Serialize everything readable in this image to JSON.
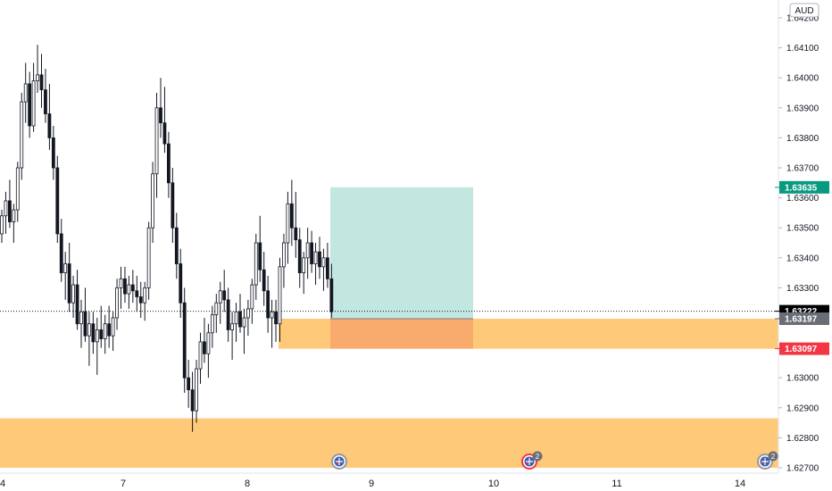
{
  "currency": "AUD",
  "colors": {
    "up": "#ffffff",
    "down": "#131722",
    "wick": "#131722",
    "zone": "#ffc97a",
    "target": "#a8dcd3",
    "stop": "#f7a26a",
    "green_tag": "#089981",
    "red_tag": "#f23645",
    "gray_tag": "#6a6d78",
    "black_tag": "#000000",
    "event_icon": "event-flag-icon"
  },
  "chart_data": {
    "type": "candlestick",
    "symbol_currency": "AUD",
    "y_ticks": [
      "1.62700",
      "1.62800",
      "1.62900",
      "1.63000",
      "1.63100",
      "1.63200",
      "1.63300",
      "1.63400",
      "1.63500",
      "1.63600",
      "1.63700",
      "1.63800",
      "1.63900",
      "1.64000",
      "1.64100",
      "1.64200"
    ],
    "ylim": [
      1.6268,
      1.6422
    ],
    "x_ticks": [
      "4",
      "7",
      "8",
      "9",
      "10",
      "11",
      "14"
    ],
    "price_tags": [
      {
        "label": "1.63635",
        "value": 1.63635,
        "color": "#089981"
      },
      {
        "label": "1.63222",
        "value": 1.63222,
        "color": "#000000"
      },
      {
        "label": "1.63197",
        "value": 1.63197,
        "color": "#6a6d78"
      },
      {
        "label": "1.63097",
        "value": 1.63097,
        "color": "#f23645"
      }
    ],
    "last_price": 1.63222,
    "position": {
      "entry": 1.63197,
      "target": 1.63635,
      "stop": 1.63097
    },
    "zones": [
      {
        "top": 1.63197,
        "bottom": 1.63097
      },
      {
        "top": 1.62865,
        "bottom": 1.627
      }
    ],
    "events": [
      {
        "badge": ""
      },
      {
        "badge": "2"
      },
      {
        "badge": "2"
      }
    ],
    "candles": [
      [
        1.6348,
        1.6356,
        1.6345,
        1.6354
      ],
      [
        1.6354,
        1.6362,
        1.6348,
        1.6359
      ],
      [
        1.6359,
        1.6366,
        1.635,
        1.6352
      ],
      [
        1.6352,
        1.6358,
        1.6345,
        1.6356
      ],
      [
        1.6356,
        1.6372,
        1.6352,
        1.637
      ],
      [
        1.637,
        1.6395,
        1.6366,
        1.6392
      ],
      [
        1.6392,
        1.6405,
        1.6385,
        1.6398
      ],
      [
        1.6398,
        1.6402,
        1.638,
        1.6384
      ],
      [
        1.6384,
        1.6405,
        1.6382,
        1.6399
      ],
      [
        1.6399,
        1.6411,
        1.6395,
        1.6401
      ],
      [
        1.6401,
        1.6408,
        1.639,
        1.6396
      ],
      [
        1.6396,
        1.6403,
        1.6385,
        1.6388
      ],
      [
        1.6388,
        1.6398,
        1.6376,
        1.638
      ],
      [
        1.638,
        1.6384,
        1.6366,
        1.637
      ],
      [
        1.637,
        1.6374,
        1.6345,
        1.6348
      ],
      [
        1.6348,
        1.6353,
        1.6332,
        1.6335
      ],
      [
        1.6335,
        1.6342,
        1.6326,
        1.6338
      ],
      [
        1.6338,
        1.6345,
        1.6322,
        1.6325
      ],
      [
        1.6325,
        1.6334,
        1.632,
        1.6331
      ],
      [
        1.6331,
        1.6336,
        1.6316,
        1.6318
      ],
      [
        1.6318,
        1.6326,
        1.631,
        1.6322
      ],
      [
        1.6322,
        1.633,
        1.6312,
        1.6314
      ],
      [
        1.6314,
        1.6322,
        1.6304,
        1.6318
      ],
      [
        1.6318,
        1.6322,
        1.6308,
        1.6312
      ],
      [
        1.6312,
        1.632,
        1.6301,
        1.6316
      ],
      [
        1.6316,
        1.6324,
        1.631,
        1.6313
      ],
      [
        1.6313,
        1.6321,
        1.6308,
        1.6318
      ],
      [
        1.6318,
        1.6324,
        1.631,
        1.6314
      ],
      [
        1.6314,
        1.6322,
        1.6309,
        1.632
      ],
      [
        1.632,
        1.6333,
        1.6316,
        1.633
      ],
      [
        1.633,
        1.6337,
        1.6323,
        1.6333
      ],
      [
        1.6333,
        1.6337,
        1.6325,
        1.6328
      ],
      [
        1.6328,
        1.6334,
        1.6323,
        1.6331
      ],
      [
        1.6331,
        1.6336,
        1.6325,
        1.6329
      ],
      [
        1.6329,
        1.6334,
        1.6322,
        1.6327
      ],
      [
        1.6327,
        1.6332,
        1.632,
        1.6325
      ],
      [
        1.6325,
        1.6332,
        1.6319,
        1.633
      ],
      [
        1.633,
        1.6352,
        1.6326,
        1.635
      ],
      [
        1.635,
        1.6372,
        1.6345,
        1.6368
      ],
      [
        1.6368,
        1.6395,
        1.636,
        1.639
      ],
      [
        1.639,
        1.64,
        1.638,
        1.6385
      ],
      [
        1.6385,
        1.6397,
        1.6375,
        1.6378
      ],
      [
        1.6378,
        1.6382,
        1.636,
        1.6365
      ],
      [
        1.6365,
        1.637,
        1.6345,
        1.635
      ],
      [
        1.635,
        1.6355,
        1.6333,
        1.6338
      ],
      [
        1.6338,
        1.6343,
        1.632,
        1.6325
      ],
      [
        1.6325,
        1.633,
        1.6295,
        1.63
      ],
      [
        1.63,
        1.6306,
        1.629,
        1.6296
      ],
      [
        1.6296,
        1.6302,
        1.6282,
        1.6289
      ],
      [
        1.6289,
        1.6306,
        1.6285,
        1.6303
      ],
      [
        1.6303,
        1.6315,
        1.6298,
        1.6312
      ],
      [
        1.6312,
        1.632,
        1.6305,
        1.6308
      ],
      [
        1.6308,
        1.6318,
        1.63,
        1.6315
      ],
      [
        1.6315,
        1.6324,
        1.631,
        1.6321
      ],
      [
        1.6321,
        1.6328,
        1.6315,
        1.6325
      ],
      [
        1.6325,
        1.6332,
        1.6318,
        1.6329
      ],
      [
        1.6329,
        1.6336,
        1.6322,
        1.6326
      ],
      [
        1.6326,
        1.633,
        1.6312,
        1.6316
      ],
      [
        1.6316,
        1.6322,
        1.6306,
        1.6318
      ],
      [
        1.6318,
        1.6325,
        1.6312,
        1.6322
      ],
      [
        1.6322,
        1.6328,
        1.6315,
        1.6317
      ],
      [
        1.6317,
        1.6323,
        1.6308,
        1.632
      ],
      [
        1.632,
        1.6326,
        1.6314,
        1.6323
      ],
      [
        1.6323,
        1.6333,
        1.6318,
        1.6331
      ],
      [
        1.6331,
        1.6348,
        1.6326,
        1.6345
      ],
      [
        1.6345,
        1.6354,
        1.6332,
        1.6336
      ],
      [
        1.6336,
        1.6342,
        1.6324,
        1.6329
      ],
      [
        1.6329,
        1.6334,
        1.6315,
        1.632
      ],
      [
        1.632,
        1.6326,
        1.631,
        1.6322
      ],
      [
        1.6322,
        1.6326,
        1.6312,
        1.6318
      ],
      [
        1.6318,
        1.634,
        1.6312,
        1.6337
      ],
      [
        1.6337,
        1.6348,
        1.633,
        1.6345
      ],
      [
        1.6345,
        1.6362,
        1.6338,
        1.6358
      ],
      [
        1.6358,
        1.6366,
        1.6344,
        1.635
      ],
      [
        1.635,
        1.6362,
        1.634,
        1.6346
      ],
      [
        1.6346,
        1.635,
        1.633,
        1.6335
      ],
      [
        1.6335,
        1.6342,
        1.6328,
        1.634
      ],
      [
        1.634,
        1.635,
        1.6333,
        1.6345
      ],
      [
        1.6345,
        1.6349,
        1.6335,
        1.6338
      ],
      [
        1.6338,
        1.6345,
        1.6331,
        1.6342
      ],
      [
        1.6342,
        1.6347,
        1.6333,
        1.6337
      ],
      [
        1.6337,
        1.6343,
        1.6329,
        1.634
      ],
      [
        1.634,
        1.6345,
        1.633,
        1.6333
      ],
      [
        1.6333,
        1.6338,
        1.632,
        1.6322
      ]
    ]
  }
}
